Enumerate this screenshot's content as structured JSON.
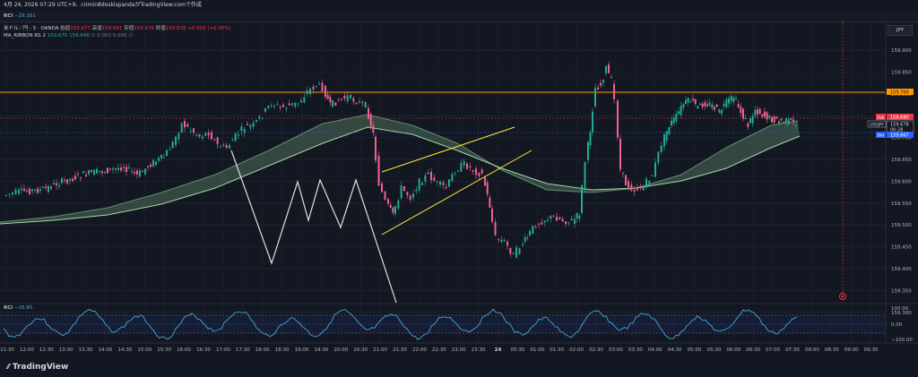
{
  "header": {
    "title": "4月 24, 2026 07:29 UTC+9、crimin8doskispandaがTradingView.comで作成"
  },
  "rci_top": {
    "name": "RCI",
    "value": "−29.161"
  },
  "legend": {
    "symbol": "米ドル／円 · 5 · OANDA",
    "open_label": "始値",
    "open_value": "159.677",
    "high_label": "高値",
    "high_value": "159.691",
    "low_label": "安値",
    "low_value": "159.676",
    "close_label": "終値",
    "close_value": "159.678",
    "change": "+0.002 (+0.00%)",
    "ribbon_name": "MA_RIBBON RS 2",
    "ribbon_v1": "159.670",
    "ribbon_v2": "159.648",
    "ribbon_v3": "0.000",
    "ribbon_v4": "0.000"
  },
  "currency_badge": "JPY",
  "price_axis": {
    "labels": [
      "159.900",
      "159.850",
      "159.800",
      "159.750",
      "159.700",
      "159.650",
      "159.600",
      "159.550",
      "159.500",
      "159.450",
      "159.400",
      "159.350",
      "159.300"
    ],
    "orange_level": "159.760",
    "ask_label": "Ask",
    "ask_value": "159.680",
    "symbol_tag": "USDJPY",
    "last_value": "159.678",
    "countdown": "00:28",
    "bid_label": "Bid",
    "bid_value": "159.667"
  },
  "rci_panel": {
    "name": "RCI",
    "value": "−26.85",
    "labels": [
      "100.00",
      "0.00",
      "−100.00"
    ]
  },
  "time_axis": [
    "11:30",
    "12:00",
    "12:30",
    "13:00",
    "13:30",
    "14:00",
    "14:30",
    "15:00",
    "15:30",
    "16:00",
    "16:30",
    "17:00",
    "17:30",
    "18:00",
    "18:30",
    "19:00",
    "19:30",
    "20:00",
    "20:30",
    "21:00",
    "21:30",
    "22:00",
    "22:30",
    "23:00",
    "23:30",
    "24",
    "00:30",
    "01:00",
    "01:30",
    "02:00",
    "02:30",
    "03:00",
    "03:30",
    "04:00",
    "04:30",
    "05:00",
    "05:30",
    "06:00",
    "06:30",
    "07:00",
    "07:30",
    "08:00",
    "08:30",
    "09:00",
    "09:30"
  ],
  "footer": {
    "brand": "TradingView"
  },
  "colors": {
    "up": "#22ab94",
    "down": "#f23645",
    "orange": "#ff9800",
    "ribbon": "#5f8f6c",
    "rci": "#4aa3df",
    "trend": "#ffeb3b"
  }
}
